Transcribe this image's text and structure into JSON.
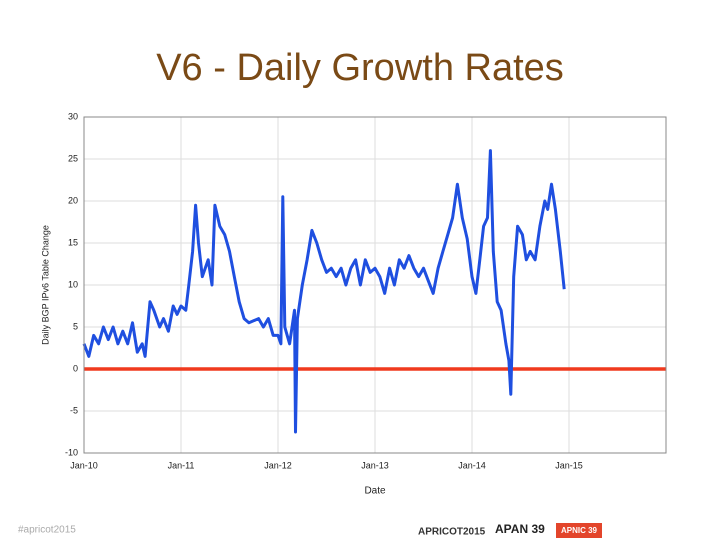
{
  "chart_data": {
    "type": "line",
    "title": "V6 - Daily Growth Rates",
    "ylabel": "Daily BGP IPv6 Table Change",
    "xlabel": "Date",
    "xlim": [
      2010,
      2016
    ],
    "ylim": [
      -10,
      30
    ],
    "xticks": [
      {
        "value": 2010,
        "label": "Jan-10"
      },
      {
        "value": 2011,
        "label": "Jan-11"
      },
      {
        "value": 2012,
        "label": "Jan-12"
      },
      {
        "value": 2013,
        "label": "Jan-13"
      },
      {
        "value": 2014,
        "label": "Jan-14"
      },
      {
        "value": 2015,
        "label": "Jan-15"
      }
    ],
    "yticks": [
      -10,
      -5,
      0,
      5,
      10,
      15,
      20,
      25,
      30
    ],
    "grid": true,
    "series": [
      {
        "color": "#1f4fe0",
        "x": [
          2010.0,
          2010.05,
          2010.1,
          2010.15,
          2010.2,
          2010.25,
          2010.3,
          2010.35,
          2010.4,
          2010.45,
          2010.5,
          2010.55,
          2010.6,
          2010.63,
          2010.68,
          2010.72,
          2010.78,
          2010.82,
          2010.87,
          2010.92,
          2010.96,
          2011.0,
          2011.05,
          2011.08,
          2011.12,
          2011.15,
          2011.18,
          2011.22,
          2011.28,
          2011.32,
          2011.35,
          2011.4,
          2011.45,
          2011.5,
          2011.55,
          2011.6,
          2011.65,
          2011.7,
          2011.8,
          2011.85,
          2011.9,
          2011.95,
          2012.0,
          2012.03,
          2012.05,
          2012.07,
          2012.12,
          2012.17,
          2012.18,
          2012.2,
          2012.25,
          2012.3,
          2012.35,
          2012.4,
          2012.45,
          2012.5,
          2012.55,
          2012.6,
          2012.65,
          2012.7,
          2012.75,
          2012.8,
          2012.85,
          2012.9,
          2012.95,
          2013.0,
          2013.05,
          2013.1,
          2013.15,
          2013.2,
          2013.25,
          2013.3,
          2013.35,
          2013.4,
          2013.45,
          2013.5,
          2013.55,
          2013.6,
          2013.65,
          2013.7,
          2013.75,
          2013.8,
          2013.85,
          2013.9,
          2013.95,
          2014.0,
          2014.04,
          2014.08,
          2014.12,
          2014.16,
          2014.19,
          2014.22,
          2014.26,
          2014.3,
          2014.35,
          2014.38,
          2014.4,
          2014.43,
          2014.47,
          2014.52,
          2014.56,
          2014.6,
          2014.65,
          2014.7,
          2014.75,
          2014.78,
          2014.82,
          2014.86,
          2014.91,
          2014.95
        ],
        "values": [
          3,
          1.5,
          4,
          3,
          5,
          3.5,
          5,
          3,
          4.5,
          3,
          5.5,
          2,
          3,
          1.5,
          8,
          7,
          5,
          6,
          4.5,
          7.5,
          6.5,
          7.5,
          7,
          10,
          14,
          19.5,
          15,
          11,
          13,
          10,
          19.5,
          17,
          16,
          14,
          11,
          8,
          6,
          5.5,
          6,
          5,
          6,
          4,
          4,
          3,
          20.5,
          5,
          3,
          7,
          -7.5,
          6,
          10,
          13,
          16.5,
          15,
          13,
          11.5,
          12,
          11,
          12,
          10,
          12,
          13,
          10,
          13,
          11.5,
          12,
          11,
          9,
          12,
          10,
          13,
          12,
          13.5,
          12,
          11,
          12,
          10.5,
          9,
          12,
          14,
          16,
          18,
          22,
          18,
          15.5,
          11,
          9,
          13,
          17,
          18,
          26,
          14,
          8,
          7,
          3,
          1,
          -3,
          11,
          17,
          16,
          13,
          14,
          13,
          17,
          20,
          19,
          22,
          19,
          14,
          9.5
        ]
      },
      {
        "color": "#f03a1e",
        "x": [
          2010,
          2016
        ],
        "values": [
          0,
          0
        ]
      }
    ],
    "footer": {
      "hashtag": "#apricot2015",
      "logos": [
        "APRICOT2015",
        "APAN 39",
        "APNIC 39"
      ]
    }
  }
}
